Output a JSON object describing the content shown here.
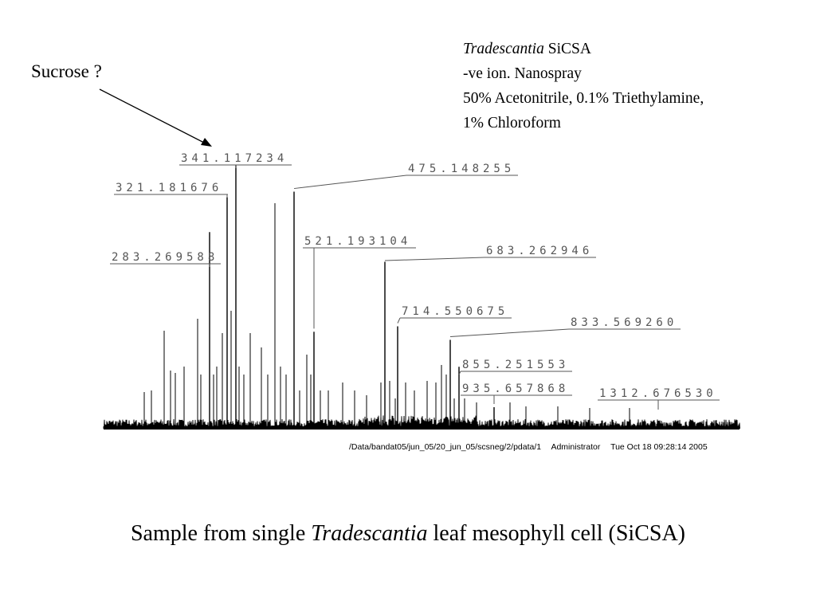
{
  "annotation": {
    "text": "Sucrose ?",
    "points_to": "341.117234"
  },
  "info": {
    "line1_italic": "Tradescantia",
    "line1_rest": " SiCSA",
    "line2": "-ve ion. Nanospray",
    "line3": "50% Acetonitrile, 0.1% Triethylamine,",
    "line4": "1% Chloroform"
  },
  "footer": {
    "path": "/Data/bandat05/jun_05/20_jun_05/scsneg/2/pdata/1",
    "user": "Administrator",
    "timestamp": "Tue Oct 18 09:28:14 2005"
  },
  "caption": {
    "before": "Sample from single ",
    "italic": "Tradescantia",
    "after": " leaf mesophyll cell (SiCSA)"
  },
  "chart_data": {
    "type": "bar",
    "description_type": "mass-spectrum stick plot",
    "xlabel": "",
    "ylabel": "",
    "grid": false,
    "labeled_peaks": [
      {
        "label": "283.269588",
        "mz": 283.269588,
        "rel_intensity": 0.73
      },
      {
        "label": "321.181676",
        "mz": 321.181676,
        "rel_intensity": 0.86
      },
      {
        "label": "341.117234",
        "mz": 341.117234,
        "rel_intensity": 0.98
      },
      {
        "label": "475.148255",
        "mz": 475.148255,
        "rel_intensity": 0.88
      },
      {
        "label": "521.193104",
        "mz": 521.193104,
        "rel_intensity": 0.36
      },
      {
        "label": "683.262946",
        "mz": 683.262946,
        "rel_intensity": 0.62
      },
      {
        "label": "714.550675",
        "mz": 714.550675,
        "rel_intensity": 0.38
      },
      {
        "label": "833.569260",
        "mz": 833.56926,
        "rel_intensity": 0.33
      },
      {
        "label": "855.251553",
        "mz": 855.251553,
        "rel_intensity": 0.23
      },
      {
        "label": "935.657868",
        "mz": 935.657868,
        "rel_intensity": 0.08
      },
      {
        "label": "1312.676530",
        "mz": 1312.67653,
        "rel_intensity": 0.03
      }
    ]
  }
}
